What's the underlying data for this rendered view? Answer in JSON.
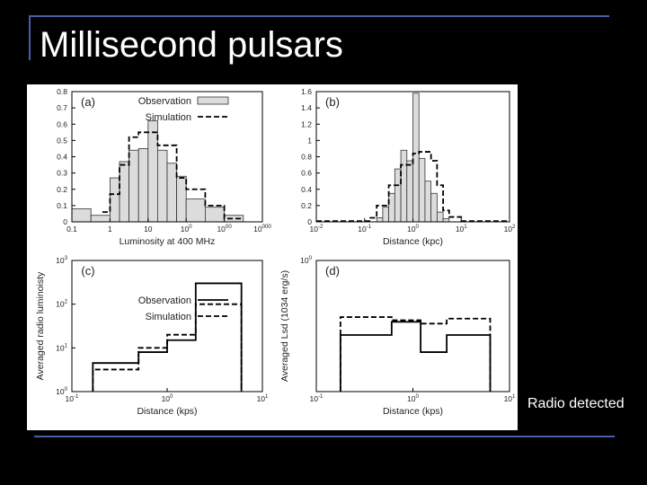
{
  "slide": {
    "title": "Millisecond pulsars",
    "side_note": "Radio detected"
  },
  "chart_data": [
    {
      "panel": "(a)",
      "type": "bar",
      "xscale": "log",
      "xlim": [
        0.1,
        10000
      ],
      "ylim": [
        0,
        0.8
      ],
      "xticks": [
        "0.1",
        "1",
        "10",
        "100",
        "1000",
        "10000"
      ],
      "yticks": [
        "0",
        "0.1",
        "0.2",
        "0.3",
        "0.4",
        "0.5",
        "0.6",
        "0.7",
        "0.8"
      ],
      "xlabel": "Luminosity at 400 MHz",
      "legend": [
        "Observation",
        "Simulation"
      ],
      "series": [
        {
          "name": "Observation",
          "style": "bars",
          "bins": [
            [
              -1.0,
              -0.5,
              0.08
            ],
            [
              -0.5,
              0.0,
              0.04
            ],
            [
              0.0,
              0.25,
              0.27
            ],
            [
              0.25,
              0.5,
              0.37
            ],
            [
              0.5,
              0.75,
              0.44
            ],
            [
              0.75,
              1.0,
              0.45
            ],
            [
              1.0,
              1.25,
              0.62
            ],
            [
              1.25,
              1.5,
              0.44
            ],
            [
              1.5,
              1.75,
              0.36
            ],
            [
              1.75,
              2.0,
              0.28
            ],
            [
              2.0,
              2.5,
              0.14
            ],
            [
              2.5,
              3.0,
              0.09
            ],
            [
              3.0,
              3.5,
              0.04
            ],
            [
              3.5,
              4.0,
              0.0
            ]
          ]
        },
        {
          "name": "Simulation",
          "style": "dashed-step",
          "bins": [
            [
              -0.2,
              0.0,
              0.06
            ],
            [
              0.0,
              0.25,
              0.17
            ],
            [
              0.25,
              0.5,
              0.35
            ],
            [
              0.5,
              0.75,
              0.52
            ],
            [
              0.75,
              1.0,
              0.55
            ],
            [
              1.0,
              1.25,
              0.55
            ],
            [
              1.25,
              1.5,
              0.47
            ],
            [
              1.5,
              1.75,
              0.47
            ],
            [
              1.75,
              2.0,
              0.27
            ],
            [
              2.0,
              2.5,
              0.2
            ],
            [
              2.5,
              3.0,
              0.1
            ],
            [
              3.0,
              3.5,
              0.02
            ]
          ]
        }
      ]
    },
    {
      "panel": "(b)",
      "type": "bar",
      "xscale": "log",
      "xlim": [
        0.01,
        100
      ],
      "ylim": [
        0,
        1.6
      ],
      "xticks": [
        "10-2",
        "10-1",
        "100",
        "101",
        "102"
      ],
      "yticks": [
        "0",
        "0.2",
        "0.4",
        "0.6",
        "0.8",
        "1",
        "1.2",
        "1.4",
        "1.6"
      ],
      "xlabel": "Distance (kpc)",
      "legend": [],
      "series": [
        {
          "name": "Observation",
          "style": "bars",
          "bins": [
            [
              -0.75,
              -0.625,
              0.05
            ],
            [
              -0.625,
              -0.5,
              0.18
            ],
            [
              -0.5,
              -0.375,
              0.35
            ],
            [
              -0.375,
              -0.25,
              0.65
            ],
            [
              -0.25,
              -0.125,
              0.88
            ],
            [
              -0.125,
              0.0,
              0.75
            ],
            [
              0.0,
              0.125,
              1.58
            ],
            [
              0.125,
              0.25,
              0.78
            ],
            [
              0.25,
              0.375,
              0.5
            ],
            [
              0.375,
              0.5,
              0.35
            ],
            [
              0.5,
              0.625,
              0.12
            ],
            [
              0.625,
              0.75,
              0.04
            ]
          ]
        },
        {
          "name": "Simulation",
          "style": "dashed-step",
          "bins": [
            [
              -2.0,
              -0.9,
              0.01
            ],
            [
              -0.9,
              -0.75,
              0.05
            ],
            [
              -0.75,
              -0.5,
              0.2
            ],
            [
              -0.5,
              -0.25,
              0.45
            ],
            [
              -0.25,
              0.0,
              0.7
            ],
            [
              0.0,
              0.125,
              0.84
            ],
            [
              0.125,
              0.375,
              0.86
            ],
            [
              0.375,
              0.5,
              0.75
            ],
            [
              0.5,
              0.625,
              0.45
            ],
            [
              0.625,
              0.75,
              0.14
            ],
            [
              0.75,
              1.0,
              0.06
            ],
            [
              1.0,
              2.0,
              0.01
            ]
          ]
        }
      ]
    },
    {
      "panel": "(c)",
      "type": "line",
      "xscale": "log",
      "yscale": "log",
      "xlim": [
        0.1,
        10
      ],
      "ylim": [
        1,
        1000
      ],
      "xticks": [
        "10-1",
        "100",
        "101"
      ],
      "yticks": [
        "100",
        "101",
        "102",
        "103"
      ],
      "xlabel": "Distance (kps)",
      "ylabel": "Averaged radio luminoisty",
      "legend": [
        "Observation",
        "Simulation"
      ],
      "series": [
        {
          "name": "Observation",
          "style": "solid-step",
          "bins": [
            [
              -0.78,
              -0.3,
              4.5
            ],
            [
              -0.3,
              0.0,
              8.0
            ],
            [
              0.0,
              0.3,
              15
            ],
            [
              0.3,
              0.78,
              300
            ]
          ]
        },
        {
          "name": "Simulation",
          "style": "dashed-step",
          "bins": [
            [
              -0.78,
              -0.3,
              3.2
            ],
            [
              -0.3,
              0.0,
              10
            ],
            [
              0.0,
              0.3,
              20
            ],
            [
              0.3,
              0.78,
              100
            ]
          ]
        }
      ]
    },
    {
      "panel": "(d)",
      "type": "line",
      "xscale": "log",
      "yscale": "log",
      "xlim": [
        0.1,
        10
      ],
      "ylim": [
        0.1,
        1
      ],
      "xticks": [
        "10-1",
        "100",
        "101"
      ],
      "yticks": [
        "100"
      ],
      "xlabel": "Distance (kps)",
      "ylabel": "Averaged Lsd (1034 erg/s)",
      "legend": [],
      "series": [
        {
          "name": "Observation",
          "style": "solid-step",
          "bins": [
            [
              -0.75,
              -0.22,
              0.27
            ],
            [
              -0.22,
              0.08,
              0.34
            ],
            [
              0.08,
              0.35,
              0.2
            ],
            [
              0.35,
              0.8,
              0.27
            ]
          ]
        },
        {
          "name": "Simulation",
          "style": "dashed-step",
          "bins": [
            [
              -0.75,
              -0.22,
              0.37
            ],
            [
              -0.22,
              0.08,
              0.35
            ],
            [
              0.08,
              0.35,
              0.33
            ],
            [
              0.35,
              0.8,
              0.36
            ]
          ]
        }
      ]
    }
  ]
}
